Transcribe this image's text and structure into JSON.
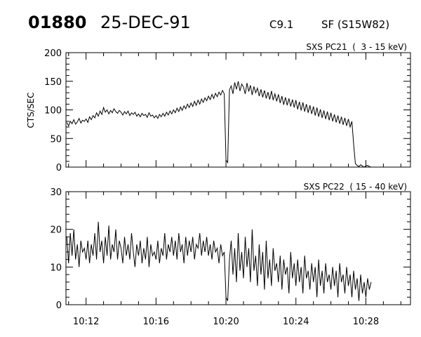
{
  "header": {
    "event_id": "01880",
    "date": "25-DEC-91",
    "goes_class": "C9.1",
    "location": "SF (S15W82)"
  },
  "chart_data": [
    {
      "type": "line",
      "title": "SXS PC21  (  3 - 15 keV)",
      "ylabel": "CTS/SEC",
      "xlabel": "",
      "ylim": [
        0,
        200
      ],
      "y_major_ticks": [
        0,
        50,
        100,
        150,
        200
      ],
      "y_minor_step": 10,
      "xlim_minutes_after_10h": [
        10.85,
        30.55
      ],
      "x_major_ticks": [
        "10:12",
        "10:16",
        "10:20",
        "10:24",
        "10:28"
      ],
      "x_tick_labels_shown": false,
      "x_start_minutes_after_10h": 10.9,
      "x_step_minutes": 0.1,
      "values": [
        78,
        72,
        80,
        76,
        83,
        75,
        79,
        85,
        77,
        82,
        80,
        84,
        78,
        88,
        83,
        90,
        86,
        95,
        89,
        98,
        92,
        104,
        96,
        100,
        93,
        99,
        95,
        102,
        97,
        94,
        99,
        96,
        91,
        97,
        93,
        98,
        90,
        95,
        92,
        96,
        89,
        93,
        88,
        94,
        90,
        92,
        87,
        95,
        89,
        91,
        86,
        90,
        85,
        92,
        88,
        94,
        89,
        96,
        91,
        98,
        93,
        100,
        95,
        103,
        97,
        105,
        99,
        107,
        102,
        110,
        104,
        112,
        106,
        115,
        108,
        117,
        110,
        119,
        113,
        121,
        116,
        124,
        118,
        127,
        120,
        129,
        123,
        131,
        126,
        134,
        128,
        12,
        8,
        135,
        142,
        128,
        148,
        136,
        150,
        133,
        145,
        140,
        128,
        147,
        132,
        143,
        126,
        141,
        130,
        138,
        124,
        136,
        122,
        134,
        120,
        131,
        118,
        133,
        117,
        128,
        115,
        127,
        112,
        124,
        109,
        122,
        108,
        120,
        106,
        118,
        104,
        117,
        101,
        114,
        99,
        113,
        97,
        110,
        95,
        108,
        93,
        106,
        90,
        104,
        88,
        101,
        86,
        99,
        84,
        97,
        82,
        95,
        80,
        92,
        78,
        90,
        76,
        88,
        74,
        86,
        72,
        84,
        70,
        80,
        40,
        6,
        3,
        1,
        4,
        2,
        0,
        2,
        3,
        1,
        0
      ]
    },
    {
      "type": "line",
      "title": "SXS PC22  ( 15 - 40 keV)",
      "ylabel": "",
      "xlabel": "",
      "ylim": [
        0,
        30
      ],
      "y_major_ticks": [
        0,
        10,
        20,
        30
      ],
      "y_minor_step": 2,
      "xlim_minutes_after_10h": [
        10.85,
        30.55
      ],
      "x_major_ticks": [
        "10:12",
        "10:16",
        "10:20",
        "10:24",
        "10:28"
      ],
      "x_tick_labels_shown": true,
      "x_start_minutes_after_10h": 10.9,
      "x_step_minutes": 0.1,
      "values": [
        18,
        11,
        19,
        13,
        20,
        12,
        16,
        10,
        17,
        14,
        15,
        12,
        17,
        11,
        16,
        13,
        19,
        12,
        22,
        14,
        17,
        11,
        18,
        13,
        21,
        12,
        16,
        14,
        20,
        12,
        17,
        15,
        11,
        18,
        13,
        16,
        12,
        19,
        14,
        10,
        16,
        13,
        17,
        11,
        15,
        12,
        18,
        10,
        16,
        13,
        14,
        12,
        17,
        11,
        15,
        13,
        19,
        12,
        16,
        14,
        18,
        13,
        17,
        12,
        19,
        14,
        16,
        11,
        18,
        13,
        17,
        14,
        18,
        12,
        16,
        15,
        19,
        13,
        17,
        14,
        18,
        13,
        16,
        12,
        17,
        14,
        15,
        11,
        16,
        13,
        14,
        2,
        1,
        12,
        17,
        8,
        15,
        6,
        19,
        9,
        14,
        7,
        18,
        10,
        15,
        6,
        20,
        9,
        13,
        5,
        16,
        8,
        14,
        4,
        17,
        7,
        12,
        5,
        15,
        9,
        11,
        6,
        13,
        4,
        12,
        8,
        10,
        3,
        14,
        7,
        11,
        5,
        12,
        6,
        10,
        3,
        13,
        7,
        9,
        4,
        11,
        6,
        10,
        2,
        12,
        5,
        9,
        3,
        11,
        6,
        8,
        4,
        10,
        5,
        9,
        2,
        11,
        6,
        8,
        3,
        10,
        5,
        8,
        2,
        9,
        4,
        7,
        1,
        8,
        3,
        6,
        2,
        7,
        4,
        6
      ]
    }
  ]
}
